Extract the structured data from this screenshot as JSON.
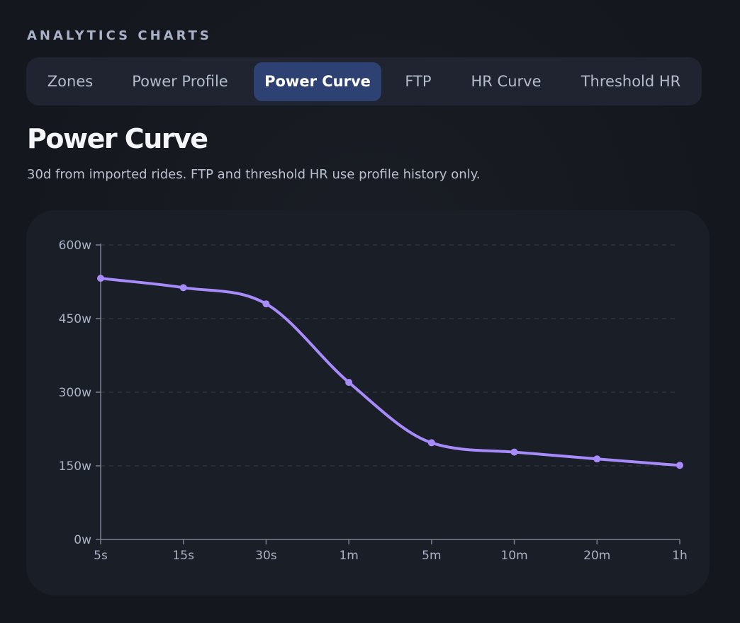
{
  "section_label": "ANALYTICS CHARTS",
  "tabs": [
    {
      "label": "Zones",
      "active": false
    },
    {
      "label": "Power Profile",
      "active": false
    },
    {
      "label": "Power Curve",
      "active": true
    },
    {
      "label": "FTP",
      "active": false
    },
    {
      "label": "HR Curve",
      "active": false
    },
    {
      "label": "Threshold HR",
      "active": false
    }
  ],
  "title": "Power Curve",
  "subtitle": "30d from imported rides. FTP and threshold HR use profile history only.",
  "colors": {
    "line": "#a78bfa",
    "active_tab": "#2e4173",
    "background": "#14171d"
  },
  "chart_data": {
    "type": "line",
    "categories": [
      "5s",
      "15s",
      "30s",
      "1m",
      "5m",
      "10m",
      "20m",
      "1h"
    ],
    "series": [
      {
        "values": [
          532,
          513,
          480,
          320,
          197,
          178,
          164,
          151
        ]
      }
    ],
    "ylim": [
      0,
      600
    ],
    "yticks": [
      0,
      150,
      300,
      450,
      600
    ],
    "ytick_labels": [
      "0w",
      "150w",
      "300w",
      "450w",
      "600w"
    ],
    "grid": true
  }
}
